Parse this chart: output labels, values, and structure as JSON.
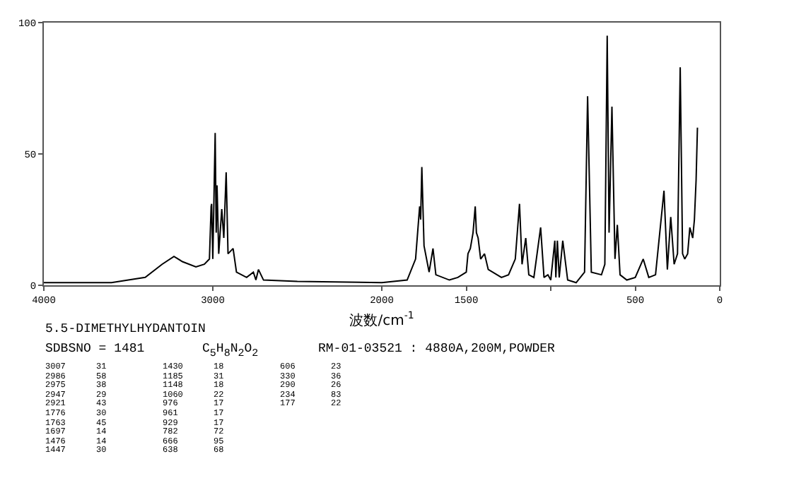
{
  "chart_data": {
    "type": "line",
    "xlabel": "波数/cm$^{-1}$",
    "x": [
      4000,
      3600,
      3400,
      3300,
      3230,
      3180,
      3100,
      3050,
      3020,
      3010,
      3007,
      3000,
      2986,
      2980,
      2975,
      2965,
      2947,
      2935,
      2921,
      2910,
      2880,
      2860,
      2800,
      2760,
      2745,
      2730,
      2700,
      2500,
      2000,
      1850,
      1800,
      1776,
      1770,
      1763,
      1750,
      1720,
      1697,
      1680,
      1600,
      1550,
      1500,
      1490,
      1476,
      1460,
      1447,
      1440,
      1430,
      1415,
      1392,
      1370,
      1292,
      1250,
      1210,
      1185,
      1170,
      1148,
      1130,
      1100,
      1060,
      1040,
      1017,
      1000,
      976,
      970,
      961,
      950,
      929,
      900,
      850,
      800,
      782,
      760,
      700,
      680,
      666,
      655,
      638,
      620,
      606,
      590,
      550,
      500,
      453,
      420,
      380,
      330,
      310,
      290,
      270,
      250,
      234,
      220,
      207,
      190,
      177,
      160,
      150,
      140,
      132
    ],
    "values": [
      1,
      1,
      3,
      8,
      11,
      9,
      7,
      8,
      10,
      30,
      31,
      10,
      58,
      20,
      38,
      12,
      29,
      18,
      43,
      12,
      14,
      5,
      3,
      5,
      2,
      6,
      2,
      1.5,
      1,
      2,
      10,
      30,
      25,
      45,
      15,
      5,
      14,
      4,
      2,
      3,
      5,
      12,
      14,
      20,
      30,
      20,
      18,
      10,
      12,
      6,
      3,
      4,
      10,
      31,
      8,
      18,
      4,
      3,
      22,
      3,
      4,
      2,
      17,
      3,
      17,
      3,
      17,
      2,
      1,
      5,
      72,
      5,
      4,
      8,
      95,
      20,
      68,
      10,
      23,
      4,
      2,
      3,
      10,
      3,
      4,
      36,
      6,
      26,
      8,
      12,
      83,
      12,
      10,
      12,
      22,
      18,
      25,
      40,
      60
    ],
    "color": "#000000",
    "xlim": [
      4000,
      0
    ],
    "xticks": [
      4000,
      3000,
      2000,
      1500,
      {
        "value": 1000,
        "label": null
      },
      500,
      0
    ],
    "ylim": [
      0,
      100
    ],
    "yticks": [
      0,
      50,
      100
    ],
    "grid": false,
    "legend": false,
    "marker": "none",
    "line_style": "solid",
    "annotations": [
      "5.5-DIMETHYLHYDANTOIN",
      "SDBSNO = 1481",
      "C$_{5}$H$_{8}$N$_{2}$O$_{2}$",
      "RM-01-03521 : 4880A,200M,POWDER",
      "3007 31",
      "2986 58",
      "2975 38",
      "2947 29",
      "2921 43",
      "1776 30",
      "1763 45",
      "1697 14",
      "1476 14",
      "1447 30",
      "1430 18",
      "1185 31",
      "1148 18",
      "1060 22",
      "976 17",
      "961 17",
      "929 17",
      "782 72",
      "666 95",
      "638 68",
      "606 23",
      "330 36",
      "290 26",
      "234 83",
      "177 22"
    ]
  }
}
